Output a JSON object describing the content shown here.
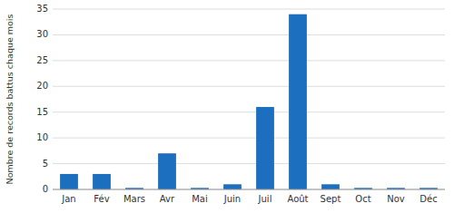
{
  "chart_data": {
    "type": "bar",
    "categories": [
      "Jan",
      "Fév",
      "Mars",
      "Avr",
      "Mai",
      "Juin",
      "Juil",
      "Août",
      "Sept",
      "Oct",
      "Nov",
      "Déc"
    ],
    "values": [
      3,
      3,
      0.3,
      7,
      0.3,
      1,
      16,
      34,
      1,
      0.3,
      0.3,
      0.3
    ],
    "color": "#1c6fbe",
    "ylabel": "Nombre de records battus chaque mois",
    "ylim": [
      0,
      35
    ],
    "yticks": [
      0,
      5,
      10,
      15,
      20,
      25,
      30,
      35
    ],
    "grid": true
  }
}
